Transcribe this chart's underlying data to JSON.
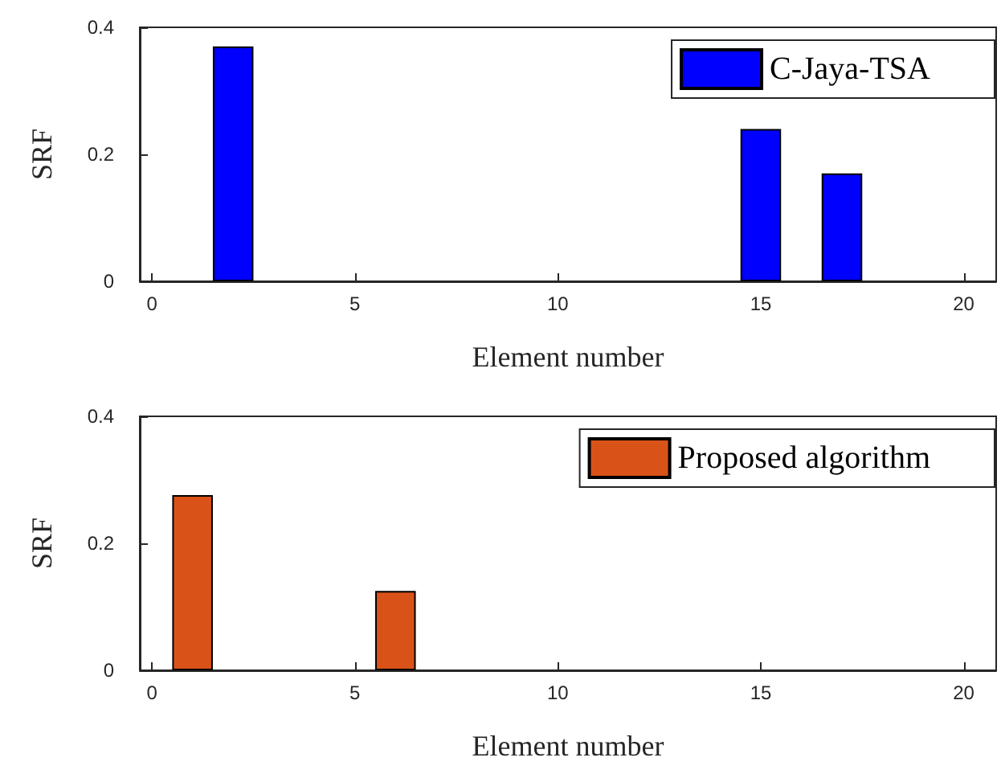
{
  "chart_data": [
    {
      "type": "bar",
      "xlabel": "Element number",
      "ylabel": "SRF",
      "x": [
        1,
        2,
        3,
        4,
        5,
        6,
        7,
        8,
        9,
        10,
        11,
        12,
        13,
        14,
        15,
        16,
        17,
        18,
        19,
        20
      ],
      "series": [
        {
          "name": "C-Jaya-TSA",
          "color": "#0000ff",
          "values": [
            0,
            0.37,
            0,
            0,
            0,
            0,
            0,
            0,
            0,
            0,
            0,
            0,
            0,
            0,
            0.24,
            0,
            0.17,
            0,
            0,
            0
          ]
        }
      ],
      "xlim": [
        -0.3,
        20.8
      ],
      "xticks": [
        0,
        5,
        10,
        15,
        20
      ],
      "ylim": [
        0,
        0.4
      ],
      "yticks": [
        0,
        0.2,
        0.4
      ],
      "grid": false,
      "legend": "top right"
    },
    {
      "type": "bar",
      "xlabel": "Element number",
      "ylabel": "SRF",
      "x": [
        1,
        2,
        3,
        4,
        5,
        6,
        7,
        8,
        9,
        10,
        11,
        12,
        13,
        14,
        15,
        16,
        17,
        18,
        19,
        20
      ],
      "series": [
        {
          "name": "Proposed algorithm",
          "color": "#d95319",
          "values": [
            0.276,
            0,
            0,
            0,
            0,
            0.125,
            0,
            0,
            0,
            0,
            0,
            0,
            0,
            0,
            0,
            0,
            0,
            0,
            0,
            0
          ]
        }
      ],
      "xlim": [
        -0.3,
        20.8
      ],
      "xticks": [
        0,
        5,
        10,
        15,
        20
      ],
      "ylim": [
        0,
        0.4
      ],
      "yticks": [
        0,
        0.2,
        0.4
      ],
      "grid": false,
      "legend": "top right"
    }
  ]
}
